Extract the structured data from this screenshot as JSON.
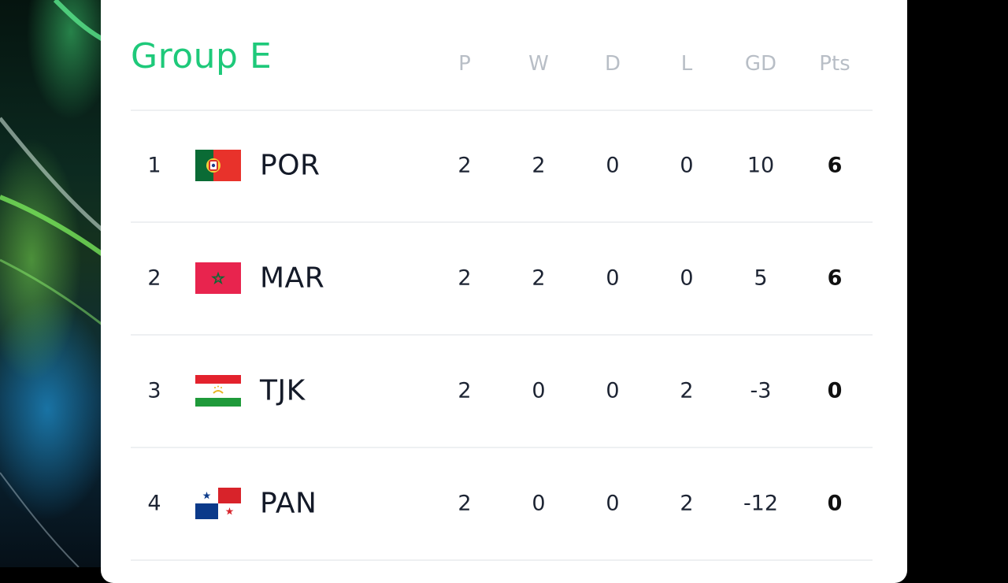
{
  "group": {
    "title": "Group E"
  },
  "columns": [
    "P",
    "W",
    "D",
    "L",
    "GD",
    "Pts"
  ],
  "rows": [
    {
      "rank": "1",
      "team": "POR",
      "flag": "portugal-flag-icon",
      "p": "2",
      "w": "2",
      "d": "0",
      "l": "0",
      "gd": "10",
      "pts": "6"
    },
    {
      "rank": "2",
      "team": "MAR",
      "flag": "morocco-flag-icon",
      "p": "2",
      "w": "2",
      "d": "0",
      "l": "0",
      "gd": "5",
      "pts": "6"
    },
    {
      "rank": "3",
      "team": "TJK",
      "flag": "tajikistan-flag-icon",
      "p": "2",
      "w": "0",
      "d": "0",
      "l": "2",
      "gd": "-3",
      "pts": "0"
    },
    {
      "rank": "4",
      "team": "PAN",
      "flag": "panama-flag-icon",
      "p": "2",
      "w": "0",
      "d": "0",
      "l": "2",
      "gd": "-12",
      "pts": "0"
    }
  ],
  "colors": {
    "title": "#1ec97a",
    "header_text": "#b8bec6",
    "body_text": "#1d2433",
    "divider": "#eef0f2"
  }
}
